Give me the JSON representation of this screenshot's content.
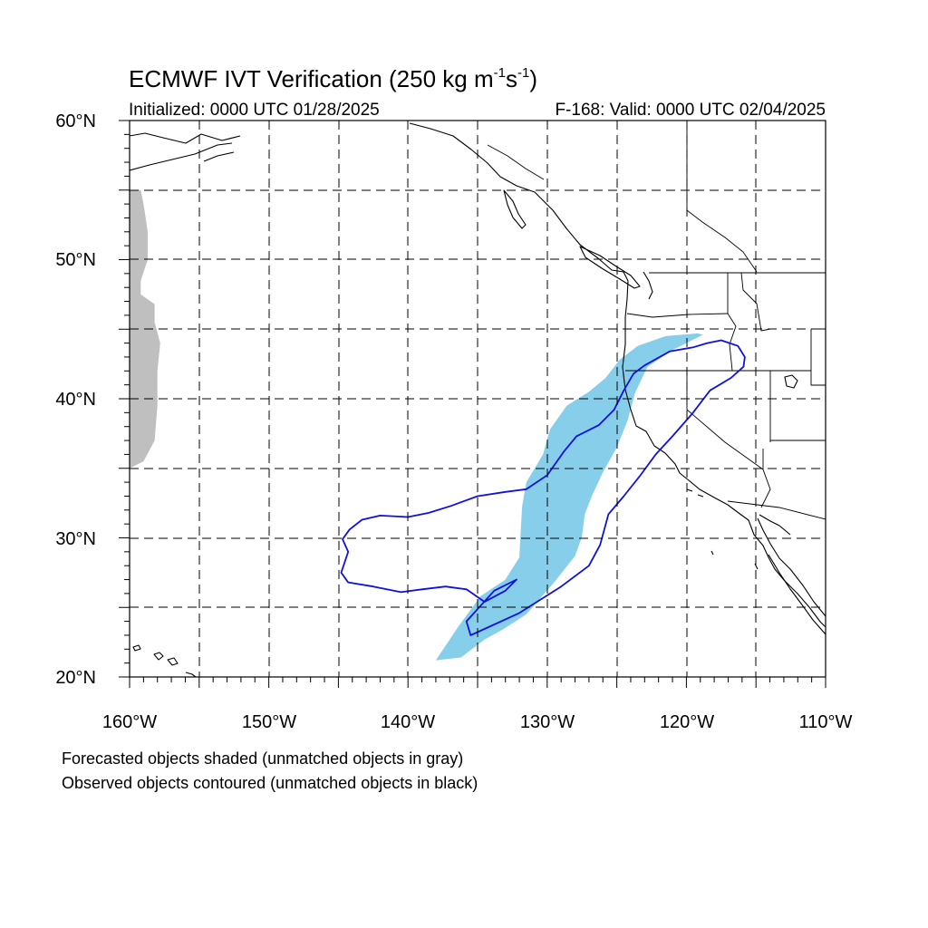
{
  "title": {
    "prefix": "ECMWF IVT Verification (250 kg m",
    "exp1": "-1",
    "mid": "s",
    "exp2": "-1",
    "suffix": ")"
  },
  "initialized": "Initialized: 0000 UTC 01/28/2025",
  "valid": "F-168: Valid: 0000 UTC 02/04/2025",
  "lat_labels": [
    "60°N",
    "50°N",
    "40°N",
    "30°N",
    "20°N"
  ],
  "lon_labels": [
    "160°W",
    "150°W",
    "140°W",
    "130°W",
    "120°W",
    "110°W"
  ],
  "footnotes": [
    "Forecasted objects shaded (unmatched objects in gray)",
    "Observed objects contoured (unmatched objects in black)"
  ],
  "map_extent": {
    "lon_min": -160,
    "lon_max": -110,
    "lat_min": 20,
    "lat_max": 60
  },
  "colors": {
    "forecast_matched": "#87ceeb",
    "forecast_unmatched": "#bfbfbf",
    "observed_matched": "#1010e0",
    "coastline": "#000000"
  },
  "forecast_objects": [
    {
      "matched": true,
      "points": [
        [
          -138.0,
          21.2
        ],
        [
          -136.2,
          21.4
        ],
        [
          -134.5,
          22.7
        ],
        [
          -133.2,
          23.4
        ],
        [
          -131.5,
          24.5
        ],
        [
          -129.5,
          26.8
        ],
        [
          -128.0,
          28.7
        ],
        [
          -127.5,
          30.1
        ],
        [
          -127.3,
          31.7
        ],
        [
          -126.8,
          33.0
        ],
        [
          -126.0,
          34.7
        ],
        [
          -125.0,
          36.5
        ],
        [
          -124.2,
          38.5
        ],
        [
          -123.7,
          40.4
        ],
        [
          -122.8,
          42.3
        ],
        [
          -121.0,
          43.5
        ],
        [
          -118.8,
          44.6
        ],
        [
          -119.2,
          44.7
        ],
        [
          -121.5,
          44.5
        ],
        [
          -123.5,
          43.8
        ],
        [
          -124.8,
          42.8
        ],
        [
          -125.8,
          41.5
        ],
        [
          -127.0,
          40.5
        ],
        [
          -128.6,
          39.5
        ],
        [
          -129.8,
          37.8
        ],
        [
          -130.3,
          36.0
        ],
        [
          -131.5,
          34.0
        ],
        [
          -131.8,
          32.3
        ],
        [
          -131.9,
          30.5
        ],
        [
          -132.0,
          28.6
        ],
        [
          -133.0,
          27.0
        ],
        [
          -134.8,
          25.8
        ],
        [
          -136.4,
          23.6
        ],
        [
          -138.0,
          21.2
        ]
      ]
    },
    {
      "matched": false,
      "points": [
        [
          -159.2,
          55.0
        ],
        [
          -159.0,
          54.0
        ],
        [
          -158.7,
          52.0
        ],
        [
          -158.7,
          50.0
        ],
        [
          -159.2,
          48.5
        ],
        [
          -159.2,
          47.5
        ],
        [
          -158.2,
          46.8
        ],
        [
          -158.2,
          45.5
        ],
        [
          -157.8,
          44.0
        ],
        [
          -158.0,
          42.0
        ],
        [
          -158.0,
          39.5
        ],
        [
          -158.2,
          37.0
        ],
        [
          -159.0,
          35.5
        ],
        [
          -160.0,
          35.0
        ],
        [
          -160.0,
          55.0
        ]
      ]
    }
  ],
  "observed_objects": [
    {
      "matched": true,
      "points": [
        [
          -135.5,
          23.0
        ],
        [
          -132.0,
          24.6
        ],
        [
          -129.0,
          26.5
        ],
        [
          -127.0,
          28.0
        ],
        [
          -126.2,
          29.5
        ],
        [
          -125.6,
          31.7
        ],
        [
          -124.5,
          33.0
        ],
        [
          -123.3,
          34.5
        ],
        [
          -122.2,
          36.0
        ],
        [
          -121.0,
          37.3
        ],
        [
          -119.6,
          38.9
        ],
        [
          -118.3,
          40.6
        ],
        [
          -116.8,
          41.5
        ],
        [
          -115.9,
          42.3
        ],
        [
          -115.8,
          43.0
        ],
        [
          -116.3,
          43.8
        ],
        [
          -117.5,
          44.2
        ],
        [
          -118.5,
          44.0
        ],
        [
          -119.5,
          43.7
        ],
        [
          -121.2,
          43.4
        ],
        [
          -123.0,
          42.4
        ],
        [
          -123.8,
          41.8
        ],
        [
          -124.5,
          40.6
        ],
        [
          -125.2,
          39.2
        ],
        [
          -126.3,
          38.1
        ],
        [
          -127.9,
          37.3
        ],
        [
          -128.8,
          36.2
        ],
        [
          -130.0,
          34.5
        ],
        [
          -131.5,
          33.5
        ],
        [
          -133.0,
          33.3
        ],
        [
          -135.0,
          33.0
        ],
        [
          -136.9,
          32.3
        ],
        [
          -138.5,
          31.8
        ],
        [
          -140.0,
          31.5
        ],
        [
          -142.0,
          31.6
        ],
        [
          -143.3,
          31.3
        ],
        [
          -144.2,
          30.6
        ],
        [
          -144.7,
          29.9
        ],
        [
          -144.3,
          29.0
        ],
        [
          -144.8,
          27.5
        ],
        [
          -144.3,
          26.8
        ],
        [
          -142.5,
          26.5
        ],
        [
          -140.5,
          26.1
        ],
        [
          -139.0,
          26.3
        ],
        [
          -137.3,
          26.5
        ],
        [
          -135.8,
          26.3
        ],
        [
          -134.5,
          25.4
        ],
        [
          -133.0,
          26.2
        ],
        [
          -132.2,
          27.0
        ],
        [
          -133.8,
          26.2
        ],
        [
          -135.8,
          24.0
        ],
        [
          -135.5,
          23.0
        ]
      ]
    }
  ]
}
